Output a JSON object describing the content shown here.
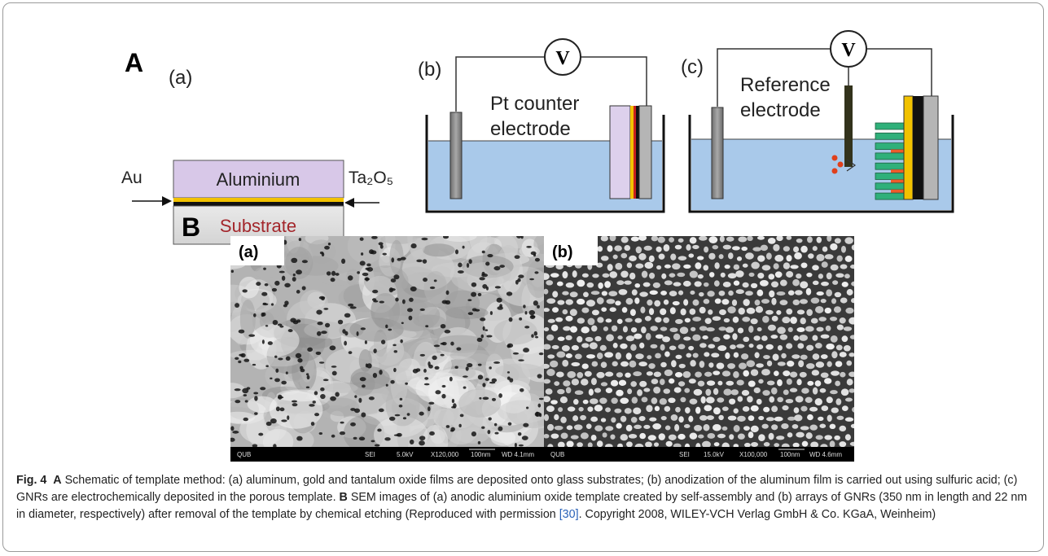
{
  "panel_a": {
    "label": "A",
    "sub_a": "(a)",
    "au": "Au",
    "aluminium": "Aluminium",
    "ta2o5": "Ta₂O₅",
    "substrate": "Substrate",
    "sub_b": "(b)",
    "voltmeter_b": "V",
    "pt_counter_line1": "Pt counter",
    "pt_counter_line2": "electrode",
    "sub_c": "(c)",
    "voltmeter_c": "V",
    "reference_line1": "Reference",
    "reference_line2": "electrode"
  },
  "panel_b": {
    "label": "B",
    "image_a": {
      "label": "(a)",
      "footer": [
        "QUB",
        "SEI",
        "5.0kV",
        "X120,000",
        "100nm",
        "WD 4.1mm"
      ]
    },
    "image_b": {
      "label": "(b)",
      "footer": [
        "QUB",
        "SEI",
        "15.0kV",
        "X100,000",
        "100nm",
        "WD 4.6mm"
      ]
    }
  },
  "caption": {
    "fig": "Fig. 4",
    "a_label": "A",
    "a_text": " Schematic of template method: (a) aluminum, gold and tantalum oxide films are deposited onto glass substrates; (b) anodization of the aluminum film is carried out using sulfuric acid; (c) GNRs are electrochemically deposited in the porous template. ",
    "b_label": "B",
    "b_text": " SEM images of (a) anodic aluminium oxide template created by self-assembly and (b) arrays of GNRs (350 nm in length and 22 nm in diameter, respectively) after removal of the template by chemical etching  (Reproduced with permission ",
    "reference": "[30]",
    "tail": ". Copyright 2008, WILEY-VCH Verlag GmbH & Co. KGaA, Weinheim)"
  }
}
